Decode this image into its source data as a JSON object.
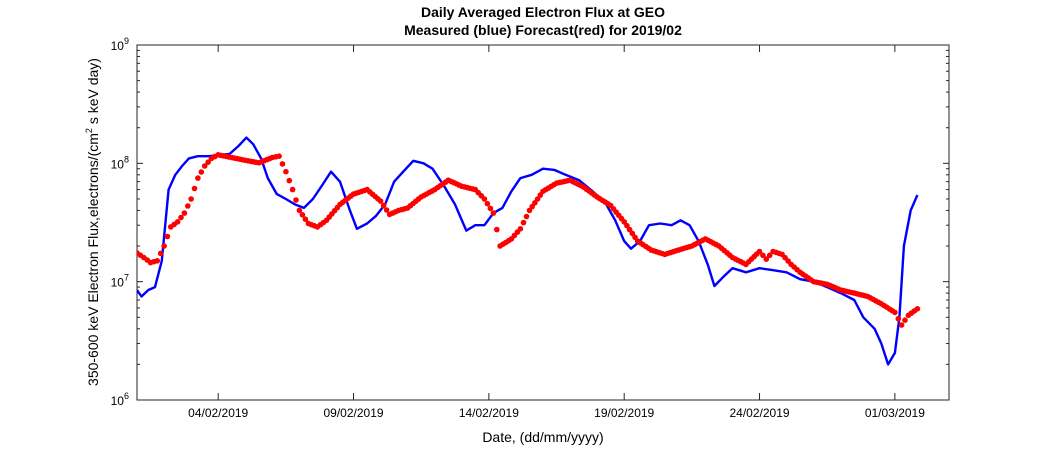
{
  "chart_data": {
    "type": "line",
    "title": "Daily Averaged Electron Flux at GEO",
    "subtitle": "Measured (blue) Forecast(red) for 2019/02",
    "xlabel": "Date, (dd/mm/yyyy)",
    "ylabel_prefix": "350-600 keV Electron Flux,electrons/(cm",
    "ylabel_exponent": "2",
    "ylabel_suffix": " s keV day)",
    "y_scale": "log",
    "ylim": [
      1000000,
      1000000000
    ],
    "xlim": [
      "2019-02-01T00:00",
      "2019-03-03T00:00"
    ],
    "grid": false,
    "x_ticks": [
      {
        "date": "2019-02-04",
        "label": "04/02/2019"
      },
      {
        "date": "2019-02-09",
        "label": "09/02/2019"
      },
      {
        "date": "2019-02-14",
        "label": "14/02/2019"
      },
      {
        "date": "2019-02-19",
        "label": "19/02/2019"
      },
      {
        "date": "2019-02-24",
        "label": "24/02/2019"
      },
      {
        "date": "2019-03-01",
        "label": "01/03/2019"
      }
    ],
    "y_ticks": [
      {
        "value": 1000000,
        "base": "10",
        "exp": "6"
      },
      {
        "value": 10000000,
        "base": "10",
        "exp": "7"
      },
      {
        "value": 100000000,
        "base": "10",
        "exp": "8"
      },
      {
        "value": 1000000000,
        "base": "10",
        "exp": "9"
      }
    ],
    "series": [
      {
        "name": "Measured",
        "color": "#0000ff",
        "style": "line",
        "points": [
          [
            "2019-02-01T00:00",
            8500000
          ],
          [
            "2019-02-01T04:00",
            7500000
          ],
          [
            "2019-02-01T10:00",
            8500000
          ],
          [
            "2019-02-01T16:00",
            9000000
          ],
          [
            "2019-02-01T22:00",
            15000000
          ],
          [
            "2019-02-02T04:00",
            60000000
          ],
          [
            "2019-02-02T10:00",
            80000000
          ],
          [
            "2019-02-02T16:00",
            95000000
          ],
          [
            "2019-02-02T22:00",
            110000000
          ],
          [
            "2019-02-03T06:00",
            115000000
          ],
          [
            "2019-02-03T16:00",
            115000000
          ],
          [
            "2019-02-04T02:00",
            118000000
          ],
          [
            "2019-02-04T10:00",
            120000000
          ],
          [
            "2019-02-04T18:00",
            140000000
          ],
          [
            "2019-02-05T01:00",
            165000000
          ],
          [
            "2019-02-05T07:00",
            145000000
          ],
          [
            "2019-02-05T14:00",
            110000000
          ],
          [
            "2019-02-05T20:00",
            75000000
          ],
          [
            "2019-02-06T04:00",
            55000000
          ],
          [
            "2019-02-06T12:00",
            50000000
          ],
          [
            "2019-02-06T20:00",
            45000000
          ],
          [
            "2019-02-07T04:00",
            42000000
          ],
          [
            "2019-02-07T12:00",
            50000000
          ],
          [
            "2019-02-07T20:00",
            65000000
          ],
          [
            "2019-02-08T04:00",
            85000000
          ],
          [
            "2019-02-08T12:00",
            70000000
          ],
          [
            "2019-02-08T20:00",
            42000000
          ],
          [
            "2019-02-09T03:00",
            28000000
          ],
          [
            "2019-02-09T12:00",
            31000000
          ],
          [
            "2019-02-09T20:00",
            36000000
          ],
          [
            "2019-02-10T04:00",
            45000000
          ],
          [
            "2019-02-10T12:00",
            70000000
          ],
          [
            "2019-02-10T20:00",
            85000000
          ],
          [
            "2019-02-11T05:00",
            105000000
          ],
          [
            "2019-02-11T14:00",
            100000000
          ],
          [
            "2019-02-11T22:00",
            90000000
          ],
          [
            "2019-02-12T08:00",
            65000000
          ],
          [
            "2019-02-12T18:00",
            45000000
          ],
          [
            "2019-02-13T04:00",
            27000000
          ],
          [
            "2019-02-13T12:00",
            30000000
          ],
          [
            "2019-02-13T20:00",
            30000000
          ],
          [
            "2019-02-14T04:00",
            38000000
          ],
          [
            "2019-02-14T12:00",
            42000000
          ],
          [
            "2019-02-14T20:00",
            58000000
          ],
          [
            "2019-02-15T04:00",
            75000000
          ],
          [
            "2019-02-15T14:00",
            80000000
          ],
          [
            "2019-02-16T00:00",
            90000000
          ],
          [
            "2019-02-16T10:00",
            88000000
          ],
          [
            "2019-02-16T20:00",
            80000000
          ],
          [
            "2019-02-17T08:00",
            72000000
          ],
          [
            "2019-02-17T20:00",
            58000000
          ],
          [
            "2019-02-18T08:00",
            45000000
          ],
          [
            "2019-02-18T16:00",
            33000000
          ],
          [
            "2019-02-19T00:00",
            22000000
          ],
          [
            "2019-02-19T06:00",
            19000000
          ],
          [
            "2019-02-19T14:00",
            22000000
          ],
          [
            "2019-02-19T22:00",
            30000000
          ],
          [
            "2019-02-20T08:00",
            31000000
          ],
          [
            "2019-02-20T18:00",
            30000000
          ],
          [
            "2019-02-21T02:00",
            33000000
          ],
          [
            "2019-02-21T10:00",
            30000000
          ],
          [
            "2019-02-21T18:00",
            22000000
          ],
          [
            "2019-02-22T02:00",
            14000000
          ],
          [
            "2019-02-22T08:00",
            9200000
          ],
          [
            "2019-02-22T16:00",
            11000000
          ],
          [
            "2019-02-23T00:00",
            13000000
          ],
          [
            "2019-02-23T12:00",
            12000000
          ],
          [
            "2019-02-24T00:00",
            13000000
          ],
          [
            "2019-02-24T12:00",
            12500000
          ],
          [
            "2019-02-25T00:00",
            12000000
          ],
          [
            "2019-02-25T12:00",
            10500000
          ],
          [
            "2019-02-26T00:00",
            10000000
          ],
          [
            "2019-02-26T12:00",
            9000000
          ],
          [
            "2019-02-27T00:00",
            8000000
          ],
          [
            "2019-02-27T12:00",
            7000000
          ],
          [
            "2019-02-27T20:00",
            5000000
          ],
          [
            "2019-02-28T06:00",
            4000000
          ],
          [
            "2019-02-28T12:00",
            3000000
          ],
          [
            "2019-02-28T18:00",
            2000000
          ],
          [
            "2019-03-01T00:00",
            2500000
          ],
          [
            "2019-03-01T04:00",
            5000000
          ],
          [
            "2019-03-01T08:00",
            20000000
          ],
          [
            "2019-03-01T14:00",
            40000000
          ],
          [
            "2019-03-01T20:00",
            54000000
          ]
        ]
      },
      {
        "name": "Forecast",
        "color": "#ff0000",
        "style": "markers",
        "points": [
          [
            "2019-02-01T00:00",
            17500000
          ],
          [
            "2019-02-01T06:00",
            16000000
          ],
          [
            "2019-02-01T12:00",
            14500000
          ],
          [
            "2019-02-01T18:00",
            15000000
          ],
          [
            "2019-02-02T00:00",
            20000000
          ],
          [
            "2019-02-02T06:00",
            29000000
          ],
          [
            "2019-02-02T12:00",
            32000000
          ],
          [
            "2019-02-02T18:00",
            38000000
          ],
          [
            "2019-02-03T00:00",
            50000000
          ],
          [
            "2019-02-03T06:00",
            75000000
          ],
          [
            "2019-02-03T12:00",
            95000000
          ],
          [
            "2019-02-03T18:00",
            110000000
          ],
          [
            "2019-02-04T00:00",
            118000000
          ],
          [
            "2019-02-04T12:00",
            112000000
          ],
          [
            "2019-02-05T00:00",
            106000000
          ],
          [
            "2019-02-05T12:00",
            101000000
          ],
          [
            "2019-02-06T00:00",
            112000000
          ],
          [
            "2019-02-06T06:00",
            115000000
          ],
          [
            "2019-02-06T12:00",
            85000000
          ],
          [
            "2019-02-06T18:00",
            60000000
          ],
          [
            "2019-02-07T00:00",
            40000000
          ],
          [
            "2019-02-07T08:00",
            31000000
          ],
          [
            "2019-02-07T16:00",
            29000000
          ],
          [
            "2019-02-08T00:00",
            33000000
          ],
          [
            "2019-02-08T12:00",
            45000000
          ],
          [
            "2019-02-09T00:00",
            55000000
          ],
          [
            "2019-02-09T12:00",
            60000000
          ],
          [
            "2019-02-10T00:00",
            48000000
          ],
          [
            "2019-02-10T08:00",
            37000000
          ],
          [
            "2019-02-10T16:00",
            40000000
          ],
          [
            "2019-02-11T00:00",
            42000000
          ],
          [
            "2019-02-11T12:00",
            52000000
          ],
          [
            "2019-02-12T00:00",
            60000000
          ],
          [
            "2019-02-12T12:00",
            72000000
          ],
          [
            "2019-02-13T00:00",
            64000000
          ],
          [
            "2019-02-13T12:00",
            60000000
          ],
          [
            "2019-02-13T20:00",
            50000000
          ],
          [
            "2019-02-14T04:00",
            38000000
          ],
          [
            "2019-02-14T10:00",
            20000000
          ],
          [
            "2019-02-14T20:00",
            23000000
          ],
          [
            "2019-02-15T04:00",
            28000000
          ],
          [
            "2019-02-15T12:00",
            40000000
          ],
          [
            "2019-02-16T00:00",
            58000000
          ],
          [
            "2019-02-16T12:00",
            68000000
          ],
          [
            "2019-02-17T00:00",
            72000000
          ],
          [
            "2019-02-17T12:00",
            63000000
          ],
          [
            "2019-02-18T00:00",
            52000000
          ],
          [
            "2019-02-18T12:00",
            44000000
          ],
          [
            "2019-02-19T00:00",
            32000000
          ],
          [
            "2019-02-19T12:00",
            22000000
          ],
          [
            "2019-02-20T00:00",
            18500000
          ],
          [
            "2019-02-20T12:00",
            17000000
          ],
          [
            "2019-02-21T00:00",
            18500000
          ],
          [
            "2019-02-21T12:00",
            20000000
          ],
          [
            "2019-02-22T00:00",
            23000000
          ],
          [
            "2019-02-22T12:00",
            20000000
          ],
          [
            "2019-02-23T00:00",
            16000000
          ],
          [
            "2019-02-23T12:00",
            14000000
          ],
          [
            "2019-02-24T00:00",
            18000000
          ],
          [
            "2019-02-24T06:00",
            15500000
          ],
          [
            "2019-02-24T12:00",
            18000000
          ],
          [
            "2019-02-24T20:00",
            17000000
          ],
          [
            "2019-02-25T04:00",
            14000000
          ],
          [
            "2019-02-25T12:00",
            12000000
          ],
          [
            "2019-02-26T00:00",
            10000000
          ],
          [
            "2019-02-26T12:00",
            9500000
          ],
          [
            "2019-02-27T00:00",
            8500000
          ],
          [
            "2019-02-27T12:00",
            8000000
          ],
          [
            "2019-02-28T00:00",
            7500000
          ],
          [
            "2019-02-28T12:00",
            6500000
          ],
          [
            "2019-03-01T00:00",
            5500000
          ],
          [
            "2019-03-01T06:00",
            4300000
          ],
          [
            "2019-03-01T12:00",
            5200000
          ],
          [
            "2019-03-01T20:00",
            5900000
          ]
        ]
      }
    ]
  }
}
